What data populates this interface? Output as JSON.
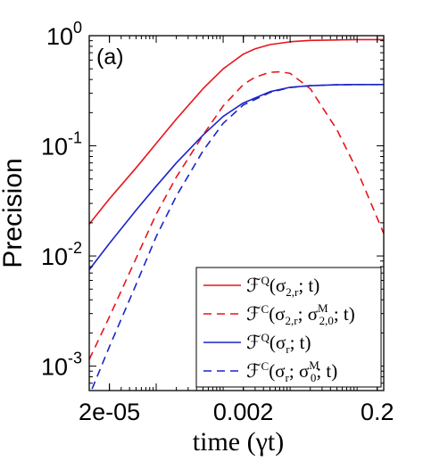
{
  "chart_data": {
    "type": "line",
    "panel_label": "(a)",
    "xlabel": "time (γt)",
    "ylabel": "Precision",
    "xscale": "log",
    "yscale": "log",
    "xlim": [
      1e-05,
      0.25
    ],
    "ylim": [
      0.0006,
      1
    ],
    "x_ticks": [
      {
        "value": 2e-05,
        "label": "2e-05"
      },
      {
        "value": 0.002,
        "label": "0.002"
      },
      {
        "value": 0.2,
        "label": "0.2"
      }
    ],
    "y_ticks": [
      {
        "value": 0.001,
        "base": "10",
        "exp": "-3"
      },
      {
        "value": 0.01,
        "base": "10",
        "exp": "-2"
      },
      {
        "value": 0.1,
        "base": "10",
        "exp": "-1"
      },
      {
        "value": 1,
        "base": "10",
        "exp": "0"
      }
    ],
    "grid": false,
    "legend_position": "bottom-right",
    "series": [
      {
        "legend": {
          "pre": "ℱ",
          "sup": "Q",
          "post": "(σ",
          "sub": "2,r",
          "tail": "; t)"
        },
        "color": "#e8141c",
        "dash": "solid",
        "x": [
          1e-05,
          2e-05,
          5e-05,
          0.0001,
          0.0002,
          0.0005,
          0.001,
          0.002,
          0.003,
          0.005,
          0.01,
          0.02,
          0.05,
          0.1,
          0.25
        ],
        "y": [
          0.0195,
          0.033,
          0.063,
          0.105,
          0.175,
          0.33,
          0.5,
          0.68,
          0.76,
          0.83,
          0.88,
          0.905,
          0.915,
          0.92,
          0.92
        ]
      },
      {
        "legend": {
          "pre": "ℱ",
          "sup": "C",
          "post": "(σ",
          "sub": "2,r",
          "mid": "; σ",
          "sub2": "2,0",
          "sup2": "M",
          "tail": "; t)"
        },
        "color": "#e8141c",
        "dash": "dashed",
        "x": [
          1e-05,
          2e-05,
          5e-05,
          0.0001,
          0.0002,
          0.0005,
          0.001,
          0.002,
          0.003,
          0.005,
          0.007,
          0.01,
          0.02,
          0.05,
          0.1,
          0.25
        ],
        "y": [
          0.00115,
          0.0028,
          0.0095,
          0.024,
          0.052,
          0.125,
          0.23,
          0.36,
          0.42,
          0.465,
          0.47,
          0.455,
          0.33,
          0.14,
          0.06,
          0.016
        ]
      },
      {
        "legend": {
          "pre": "ℱ",
          "sup": "Q",
          "post": "(σ",
          "sub": "r",
          "tail": "; t)"
        },
        "color": "#1a24c8",
        "dash": "solid",
        "x": [
          1e-05,
          2e-05,
          5e-05,
          0.0001,
          0.0002,
          0.0005,
          0.001,
          0.002,
          0.005,
          0.01,
          0.02,
          0.05,
          0.1,
          0.25
        ],
        "y": [
          0.0075,
          0.013,
          0.026,
          0.043,
          0.07,
          0.125,
          0.185,
          0.245,
          0.31,
          0.34,
          0.352,
          0.358,
          0.36,
          0.36
        ]
      },
      {
        "legend": {
          "pre": "ℱ",
          "sup": "C",
          "post": "(σ",
          "sub": "r",
          "mid": "; σ",
          "sub2": "0",
          "sup2": "M",
          "tail": "; t)"
        },
        "color": "#1a24c8",
        "dash": "dashed",
        "x": [
          1.1e-05,
          2e-05,
          5e-05,
          0.0001,
          0.0002,
          0.0005,
          0.001,
          0.002,
          0.005,
          0.01,
          0.02,
          0.05,
          0.1,
          0.25
        ],
        "y": [
          0.00062,
          0.0015,
          0.0055,
          0.015,
          0.035,
          0.09,
          0.16,
          0.235,
          0.305,
          0.338,
          0.352,
          0.358,
          0.36,
          0.36
        ]
      }
    ]
  }
}
